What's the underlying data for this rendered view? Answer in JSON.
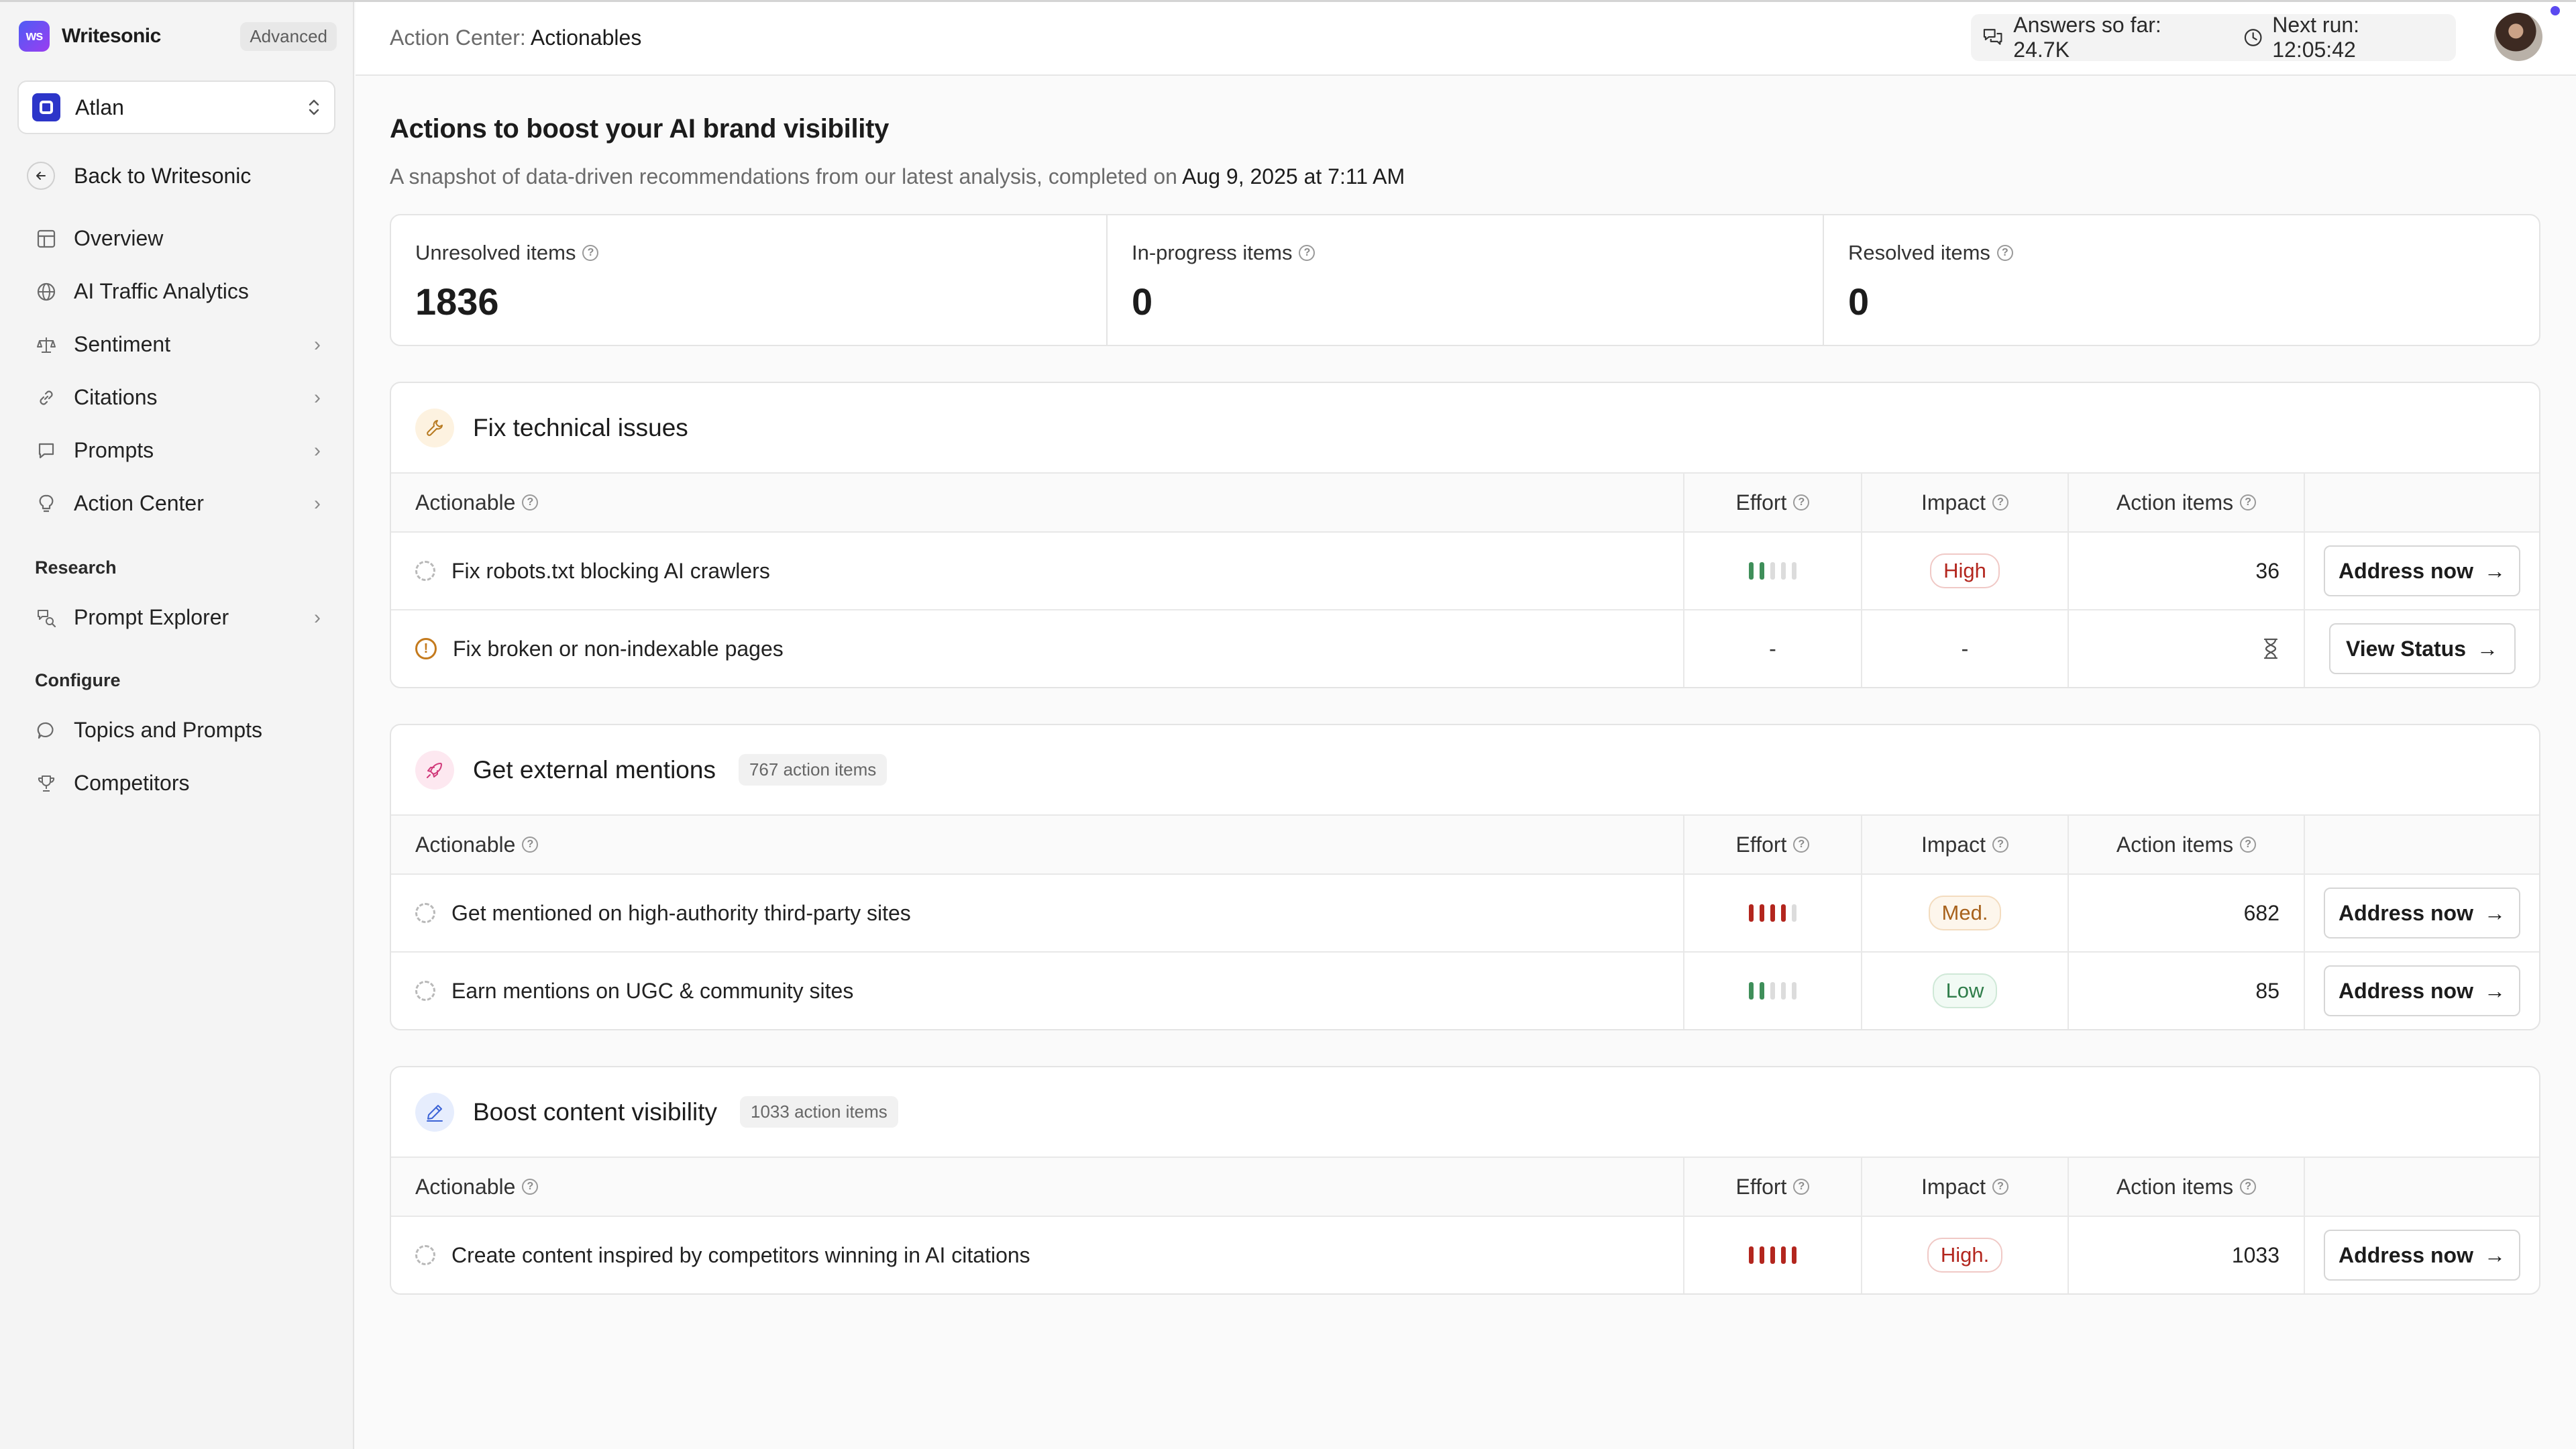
{
  "brand": {
    "logo_text": "ws",
    "name": "Writesonic",
    "plan_badge": "Advanced"
  },
  "workspace": {
    "name": "Atlan"
  },
  "back": {
    "label": "Back to Writesonic"
  },
  "nav": {
    "items": [
      {
        "label": "Overview",
        "icon": "dashboard-icon"
      },
      {
        "label": "AI Traffic Analytics",
        "icon": "globe-icon"
      },
      {
        "label": "Sentiment",
        "icon": "scale-icon"
      },
      {
        "label": "Citations",
        "icon": "link-icon"
      },
      {
        "label": "Prompts",
        "icon": "chat-icon"
      },
      {
        "label": "Action Center",
        "icon": "lightbulb-icon"
      }
    ],
    "research_heading": "Research",
    "research_items": [
      {
        "label": "Prompt Explorer",
        "icon": "prompt-explorer-icon"
      }
    ],
    "configure_heading": "Configure",
    "configure_items": [
      {
        "label": "Topics and Prompts",
        "icon": "message-icon"
      },
      {
        "label": "Competitors",
        "icon": "trophy-icon"
      }
    ]
  },
  "header": {
    "crumb_prefix": "Action Center:",
    "crumb_page": "Actionables",
    "answers_label": "Answers so far: 24.7K",
    "next_run_label": "Next run: 12:05:42"
  },
  "page": {
    "title": "Actions to boost your AI brand visibility",
    "subtitle_prefix": "A snapshot of data-driven recommendations from our latest analysis, completed on",
    "subtitle_date": "Aug 9, 2025 at 7:11 AM"
  },
  "summary": [
    {
      "label": "Unresolved items",
      "value": "1836"
    },
    {
      "label": "In-progress items",
      "value": "0"
    },
    {
      "label": "Resolved items",
      "value": "0"
    }
  ],
  "columns": {
    "actionable": "Actionable",
    "effort": "Effort",
    "impact": "Impact",
    "action_items": "Action items"
  },
  "sections": [
    {
      "title": "Fix technical issues",
      "count": "",
      "rows": [
        {
          "label": "Fix robots.txt blocking AI crawlers",
          "effort": 2,
          "impact": "High",
          "items": "36",
          "button": "Address now"
        },
        {
          "label": "Fix broken or non-indexable pages",
          "effort_text": "-",
          "impact_text": "-",
          "button": "View Status"
        }
      ]
    },
    {
      "title": "Get external mentions",
      "count": "767 action items",
      "rows": [
        {
          "label": "Get mentioned on high-authority third-party sites",
          "effort": 4,
          "impact": "Med.",
          "items": "682",
          "button": "Address now"
        },
        {
          "label": "Earn mentions on UGC & community sites",
          "effort": 2,
          "impact": "Low",
          "items": "85",
          "button": "Address now"
        }
      ]
    },
    {
      "title": "Boost content visibility",
      "count": "1033 action items",
      "rows": [
        {
          "label": "Create content inspired by competitors winning in AI citations",
          "effort": 5,
          "impact": "High.",
          "items": "1033",
          "button": "Address now"
        }
      ]
    }
  ],
  "colors": {
    "accent": "#5b4af0",
    "high": "#b3261e",
    "medium": "#a8621c",
    "low": "#2f7d4a",
    "effort_low": "#3f8f5a",
    "effort_high": "#b3261e"
  }
}
